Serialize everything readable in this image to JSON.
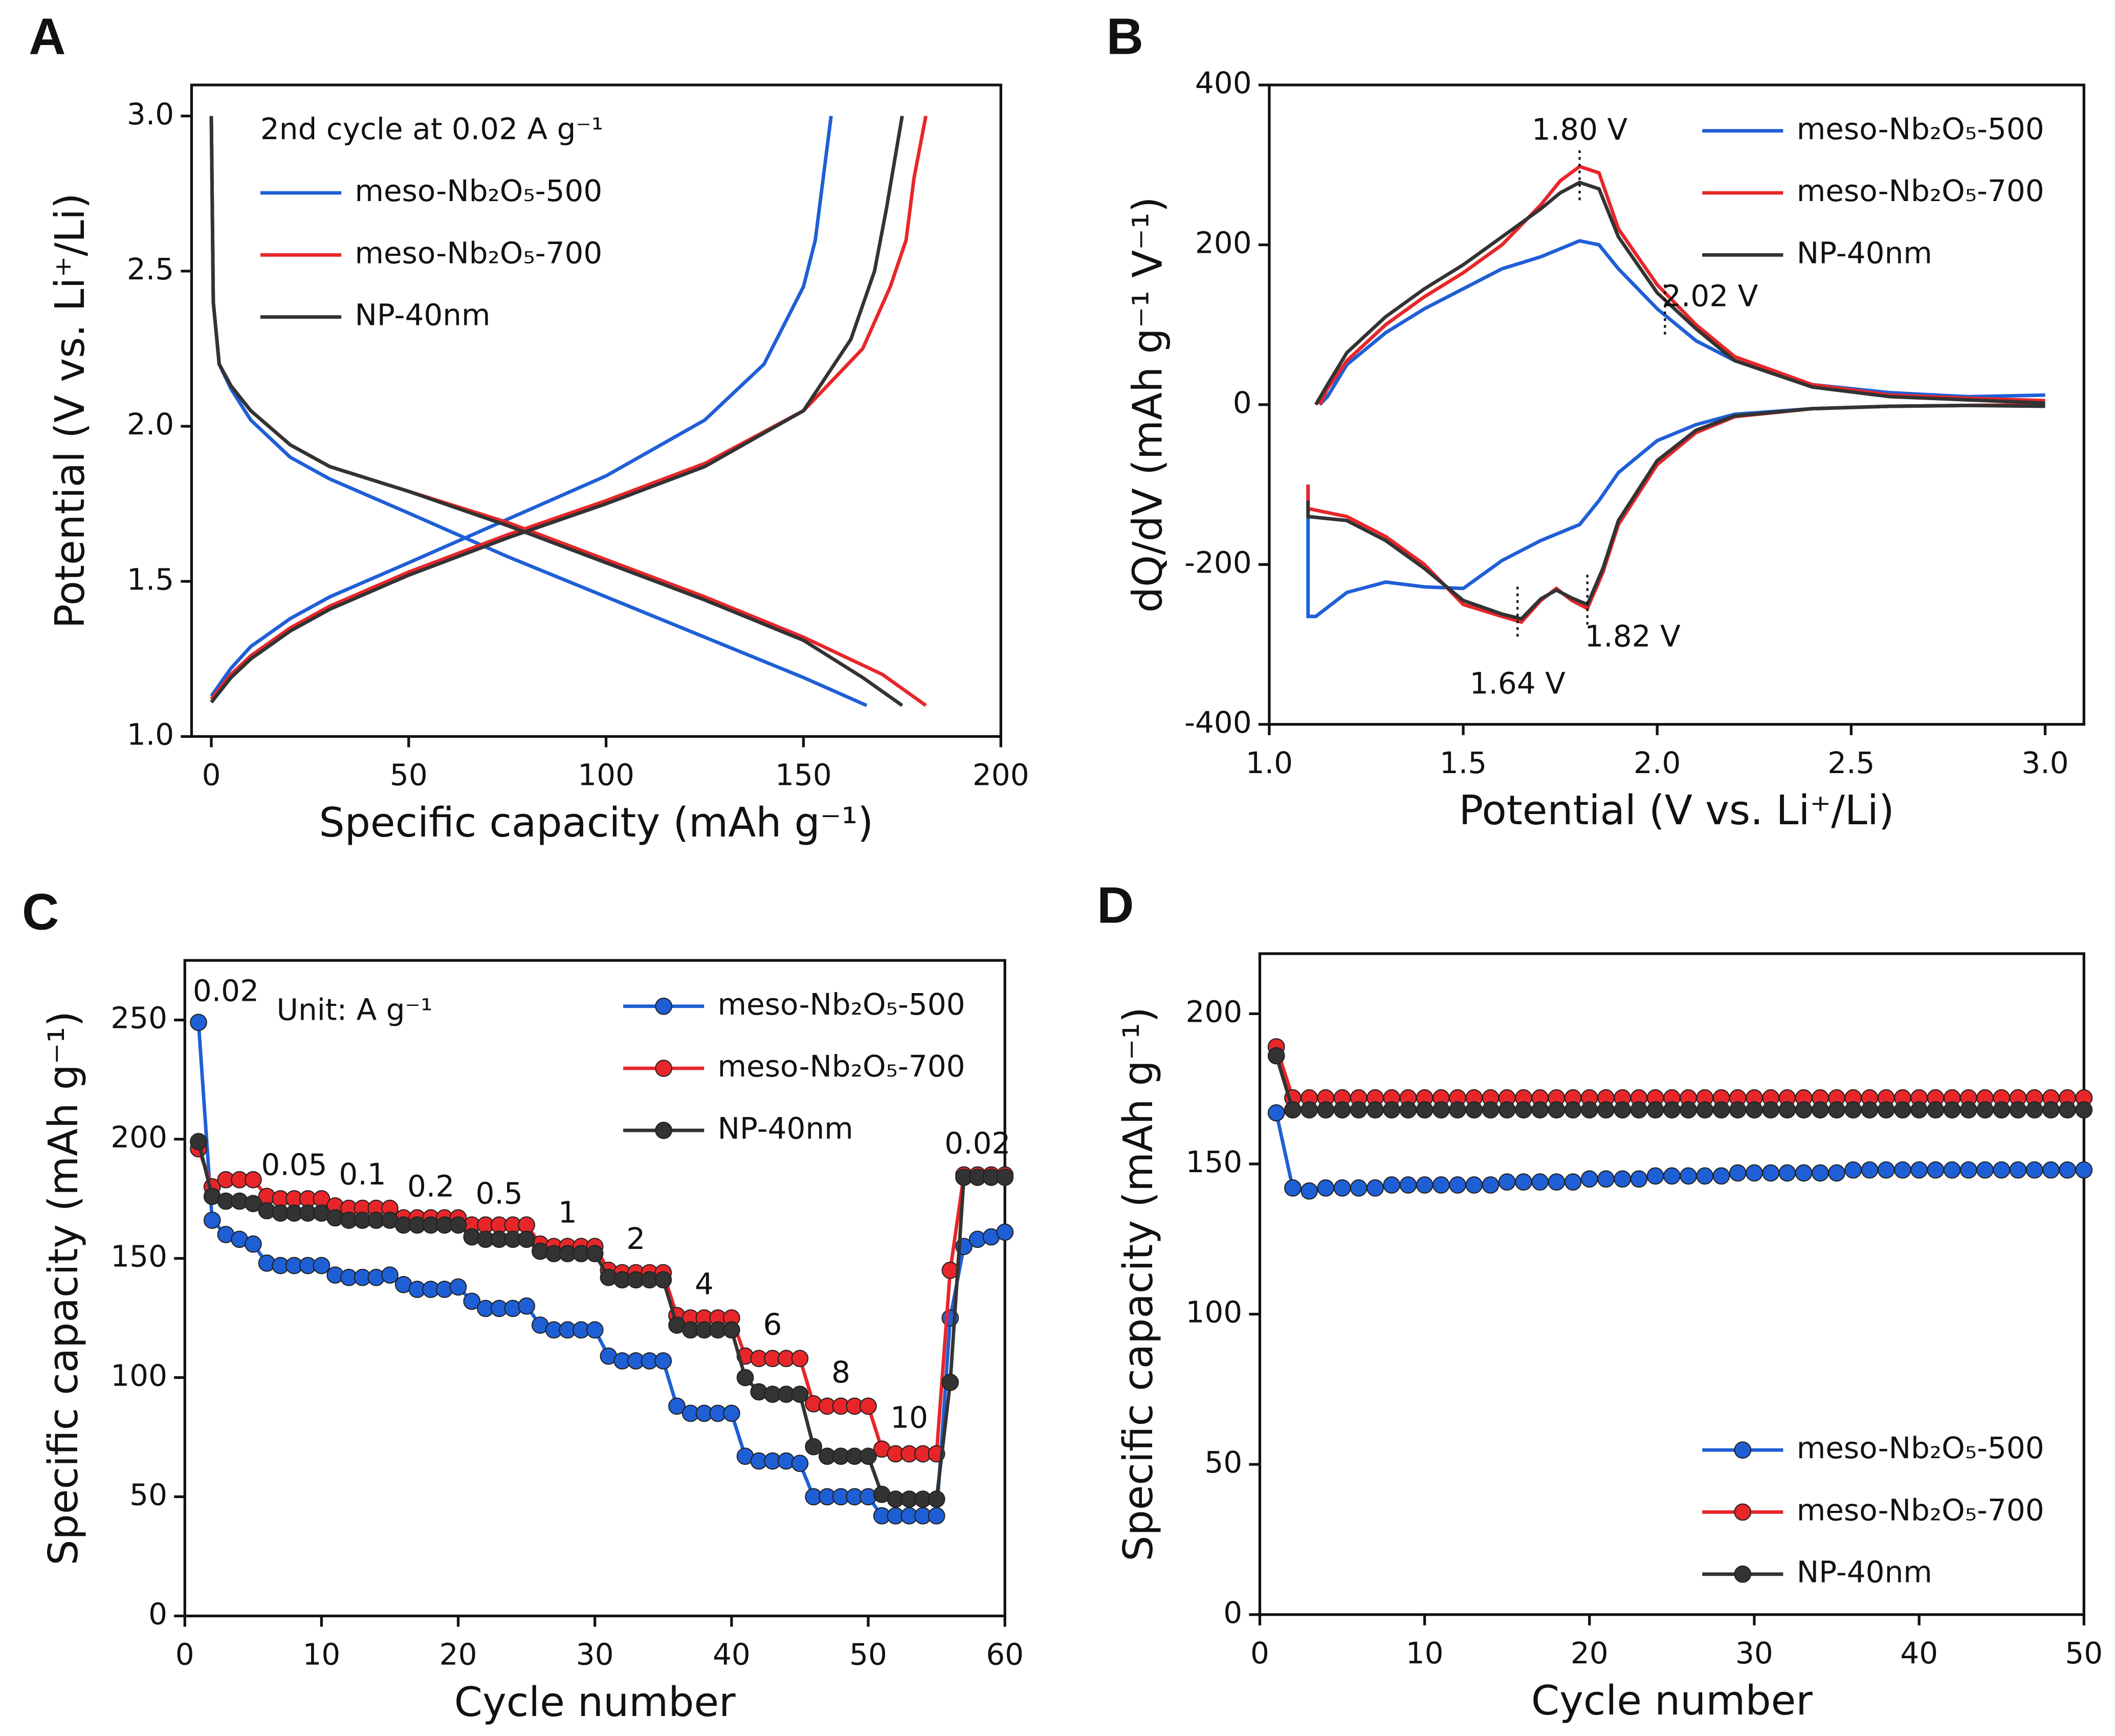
{
  "chart_data": [
    {
      "panel": "A",
      "type": "line",
      "xlabel": "Specific capacity (mAh g⁻¹)",
      "ylabel": "Potential (V vs. Li⁺/Li)",
      "legend_title": "2nd cycle at 0.02 A g⁻¹",
      "legend": "upper left",
      "xlim": [
        -5,
        200
      ],
      "ylim": [
        1.0,
        3.1
      ],
      "xticks": [
        0,
        50,
        100,
        150,
        200
      ],
      "yticks": [
        {
          "value": 1.0,
          "label": "1.0"
        },
        1.5,
        {
          "value": 2.0,
          "label": "2.0"
        },
        2.5,
        {
          "value": 3.0,
          "label": "3.0"
        }
      ],
      "series": [
        {
          "name": "meso-Nb₂O₅-500",
          "color": "#1f5fd6",
          "x": [
            0,
            0.5,
            2,
            5,
            10,
            20,
            30,
            50,
            75,
            100,
            125,
            150,
            166,
            null,
            0,
            5,
            10,
            20,
            30,
            50,
            75,
            100,
            125,
            140,
            150,
            153,
            155,
            157
          ],
          "values": [
            3.0,
            2.4,
            2.2,
            2.12,
            2.02,
            1.9,
            1.83,
            1.72,
            1.58,
            1.45,
            1.32,
            1.19,
            1.1,
            null,
            1.13,
            1.22,
            1.29,
            1.38,
            1.45,
            1.56,
            1.7,
            1.84,
            2.02,
            2.2,
            2.45,
            2.6,
            2.8,
            3.0
          ]
        },
        {
          "name": "meso-Nb₂O₅-700",
          "color": "#e8262a",
          "x": [
            0,
            0.5,
            2,
            5,
            10,
            20,
            30,
            50,
            75,
            100,
            125,
            150,
            170,
            181,
            null,
            0,
            5,
            10,
            20,
            30,
            50,
            75,
            100,
            125,
            150,
            165,
            172,
            176,
            178,
            181
          ],
          "values": [
            3.0,
            2.4,
            2.2,
            2.13,
            2.05,
            1.94,
            1.87,
            1.79,
            1.69,
            1.57,
            1.45,
            1.32,
            1.2,
            1.1,
            null,
            1.12,
            1.2,
            1.26,
            1.35,
            1.42,
            1.53,
            1.65,
            1.76,
            1.88,
            2.05,
            2.25,
            2.45,
            2.6,
            2.8,
            3.0
          ]
        },
        {
          "name": "NP-40nm",
          "color": "#333333",
          "x": [
            0,
            0.5,
            2,
            5,
            10,
            20,
            30,
            50,
            75,
            100,
            125,
            150,
            165,
            175,
            null,
            0,
            5,
            10,
            20,
            30,
            50,
            75,
            100,
            125,
            150,
            162,
            168,
            171,
            173,
            175
          ],
          "values": [
            3.0,
            2.4,
            2.2,
            2.13,
            2.05,
            1.94,
            1.87,
            1.79,
            1.68,
            1.56,
            1.44,
            1.31,
            1.19,
            1.1,
            null,
            1.11,
            1.19,
            1.25,
            1.34,
            1.41,
            1.52,
            1.64,
            1.75,
            1.87,
            2.05,
            2.28,
            2.5,
            2.7,
            2.85,
            3.0
          ]
        }
      ]
    },
    {
      "panel": "B",
      "type": "line",
      "xlabel": "Potential (V vs. Li⁺/Li)",
      "ylabel": "dQ/dV (mAh g⁻¹ V⁻¹)",
      "legend": "upper right",
      "xlim": [
        1.0,
        3.1
      ],
      "ylim": [
        -400,
        400
      ],
      "xticks": [
        {
          "value": 1.0,
          "label": "1.0"
        },
        1.5,
        {
          "value": 2.0,
          "label": "2.0"
        },
        2.5,
        {
          "value": 3.0,
          "label": "3.0"
        }
      ],
      "yticks": [
        -400,
        -200,
        0,
        200,
        400
      ],
      "series": [
        {
          "name": "meso-Nb₂O₅-500",
          "color": "#1f5fd6",
          "x": [
            1.13,
            1.15,
            1.2,
            1.3,
            1.4,
            1.5,
            1.6,
            1.7,
            1.8,
            1.85,
            1.9,
            2.0,
            2.1,
            2.2,
            2.4,
            2.6,
            2.8,
            3.0,
            null,
            1.1,
            1.1,
            1.12,
            1.2,
            1.3,
            1.4,
            1.5,
            1.6,
            1.7,
            1.8,
            1.85,
            1.9,
            2.0,
            2.1,
            2.2,
            2.4,
            2.6,
            2.8,
            3.0
          ],
          "values": [
            0,
            10,
            50,
            90,
            120,
            145,
            170,
            185,
            205,
            200,
            170,
            120,
            80,
            55,
            25,
            15,
            10,
            12,
            null,
            -100,
            -265,
            -265,
            -235,
            -222,
            -228,
            -230,
            -195,
            -170,
            -150,
            -120,
            -85,
            -45,
            -25,
            -12,
            -5,
            -2,
            -1,
            0
          ]
        },
        {
          "name": "meso-Nb₂O₅-700",
          "color": "#e8262a",
          "x": [
            1.13,
            1.15,
            1.2,
            1.3,
            1.4,
            1.5,
            1.6,
            1.7,
            1.75,
            1.8,
            1.85,
            1.9,
            2.0,
            2.1,
            2.2,
            2.4,
            2.6,
            2.8,
            3.0,
            null,
            1.1,
            1.1,
            1.2,
            1.3,
            1.4,
            1.5,
            1.6,
            1.65,
            1.7,
            1.74,
            1.78,
            1.82,
            1.86,
            1.9,
            2.0,
            2.1,
            2.2,
            2.4,
            2.6,
            2.8,
            3.0
          ],
          "values": [
            0,
            20,
            55,
            100,
            135,
            165,
            200,
            250,
            280,
            298,
            290,
            220,
            150,
            100,
            60,
            25,
            12,
            8,
            5,
            null,
            -100,
            -130,
            -140,
            -165,
            -200,
            -250,
            -265,
            -272,
            -245,
            -230,
            -245,
            -255,
            -210,
            -150,
            -75,
            -35,
            -15,
            -5,
            -2,
            -1,
            0
          ]
        },
        {
          "name": "NP-40nm",
          "color": "#333333",
          "x": [
            1.12,
            1.15,
            1.2,
            1.3,
            1.4,
            1.5,
            1.6,
            1.7,
            1.75,
            1.8,
            1.85,
            1.9,
            2.0,
            2.1,
            2.2,
            2.4,
            2.6,
            2.8,
            3.0,
            null,
            1.1,
            1.1,
            1.2,
            1.3,
            1.4,
            1.5,
            1.6,
            1.65,
            1.7,
            1.74,
            1.78,
            1.82,
            1.86,
            1.9,
            2.0,
            2.1,
            2.2,
            2.4,
            2.6,
            2.8,
            3.0
          ],
          "values": [
            0,
            25,
            65,
            110,
            145,
            175,
            210,
            245,
            265,
            278,
            270,
            210,
            140,
            95,
            55,
            22,
            10,
            6,
            2,
            null,
            -120,
            -140,
            -145,
            -170,
            -205,
            -245,
            -262,
            -268,
            -243,
            -232,
            -242,
            -250,
            -205,
            -145,
            -70,
            -32,
            -14,
            -5,
            -2,
            -1,
            -2
          ]
        }
      ],
      "annotations": [
        {
          "text": "1.80 V",
          "x": 1.8,
          "y": 298
        },
        {
          "text": "2.02 V",
          "x": 2.02,
          "y": 130
        },
        {
          "text": "1.64 V",
          "x": 1.64,
          "y": -270
        },
        {
          "text": "1.82 V",
          "x": 1.82,
          "y": -255
        }
      ]
    },
    {
      "panel": "C",
      "type": "line",
      "markers": true,
      "xlabel": "Cycle number",
      "ylabel": "Specific capacity (mAh g⁻¹)",
      "legend": "upper right",
      "note": "Unit:  A g⁻¹",
      "rate_labels": [
        "0.02",
        "0.05",
        "0.1",
        "0.2",
        "0.5",
        "1",
        "2",
        "4",
        "6",
        "8",
        "10",
        "0.02"
      ],
      "xlim": [
        0,
        60
      ],
      "ylim": [
        0,
        275
      ],
      "xticks": [
        0,
        10,
        20,
        30,
        40,
        50,
        60
      ],
      "yticks": [
        0,
        50,
        100,
        150,
        200,
        250
      ],
      "x": [
        1,
        2,
        3,
        4,
        5,
        6,
        7,
        8,
        9,
        10,
        11,
        12,
        13,
        14,
        15,
        16,
        17,
        18,
        19,
        20,
        21,
        22,
        23,
        24,
        25,
        26,
        27,
        28,
        29,
        30,
        31,
        32,
        33,
        34,
        35,
        36,
        37,
        38,
        39,
        40,
        41,
        42,
        43,
        44,
        45,
        46,
        47,
        48,
        49,
        50,
        51,
        52,
        53,
        54,
        55,
        56,
        57,
        58,
        59,
        60
      ],
      "series": [
        {
          "name": "meso-Nb₂O₅-500",
          "color": "#1f5fd6",
          "values": [
            249,
            166,
            160,
            158,
            156,
            148,
            147,
            147,
            147,
            147,
            143,
            142,
            142,
            142,
            143,
            139,
            137,
            137,
            137,
            138,
            132,
            129,
            129,
            129,
            130,
            122,
            120,
            120,
            120,
            120,
            109,
            107,
            107,
            107,
            107,
            88,
            85,
            85,
            85,
            85,
            67,
            65,
            65,
            65,
            64,
            50,
            50,
            50,
            50,
            50,
            42,
            42,
            42,
            42,
            42,
            125,
            155,
            158,
            159,
            161
          ]
        },
        {
          "name": "meso-Nb₂O₅-700",
          "color": "#e8262a",
          "values": [
            196,
            180,
            183,
            183,
            183,
            176,
            175,
            175,
            175,
            175,
            172,
            171,
            171,
            171,
            171,
            167,
            167,
            167,
            167,
            167,
            164,
            164,
            164,
            164,
            164,
            156,
            155,
            155,
            155,
            155,
            145,
            144,
            144,
            144,
            144,
            126,
            125,
            125,
            125,
            125,
            109,
            108,
            108,
            108,
            108,
            89,
            88,
            88,
            88,
            88,
            70,
            68,
            68,
            68,
            68,
            145,
            185,
            185,
            185,
            185
          ]
        },
        {
          "name": "NP-40nm",
          "color": "#333333",
          "values": [
            199,
            176,
            174,
            174,
            173,
            170,
            169,
            169,
            169,
            169,
            167,
            166,
            166,
            166,
            166,
            164,
            164,
            164,
            164,
            164,
            159,
            158,
            158,
            158,
            158,
            153,
            152,
            152,
            152,
            152,
            142,
            141,
            141,
            141,
            141,
            122,
            120,
            120,
            120,
            120,
            100,
            94,
            93,
            93,
            93,
            71,
            67,
            67,
            67,
            67,
            51,
            49,
            49,
            49,
            49,
            98,
            184,
            184,
            184,
            184
          ]
        }
      ]
    },
    {
      "panel": "D",
      "type": "line",
      "markers": true,
      "xlabel": "Cycle number",
      "ylabel": "Specific capacity (mAh g⁻¹)",
      "legend": "lower right",
      "xlim": [
        0,
        50
      ],
      "ylim": [
        0,
        220
      ],
      "xticks": [
        0,
        10,
        20,
        30,
        40,
        50
      ],
      "yticks": [
        0,
        50,
        100,
        150,
        200
      ],
      "x": [
        1,
        2,
        3,
        4,
        5,
        6,
        7,
        8,
        9,
        10,
        11,
        12,
        13,
        14,
        15,
        16,
        17,
        18,
        19,
        20,
        21,
        22,
        23,
        24,
        25,
        26,
        27,
        28,
        29,
        30,
        31,
        32,
        33,
        34,
        35,
        36,
        37,
        38,
        39,
        40,
        41,
        42,
        43,
        44,
        45,
        46,
        47,
        48,
        49,
        50
      ],
      "series": [
        {
          "name": "meso-Nb₂O₅-500",
          "color": "#1f5fd6",
          "values": [
            167,
            142,
            141,
            142,
            142,
            142,
            142,
            143,
            143,
            143,
            143,
            143,
            143,
            143,
            144,
            144,
            144,
            144,
            144,
            145,
            145,
            145,
            145,
            146,
            146,
            146,
            146,
            146,
            147,
            147,
            147,
            147,
            147,
            147,
            147,
            148,
            148,
            148,
            148,
            148,
            148,
            148,
            148,
            148,
            148,
            148,
            148,
            148,
            148,
            148
          ]
        },
        {
          "name": "meso-Nb₂O₅-700",
          "color": "#e8262a",
          "values": [
            189,
            172,
            172,
            172,
            172,
            172,
            172,
            172,
            172,
            172,
            172,
            172,
            172,
            172,
            172,
            172,
            172,
            172,
            172,
            172,
            172,
            172,
            172,
            172,
            172,
            172,
            172,
            172,
            172,
            172,
            172,
            172,
            172,
            172,
            172,
            172,
            172,
            172,
            172,
            172,
            172,
            172,
            172,
            172,
            172,
            172,
            172,
            172,
            172,
            172
          ]
        },
        {
          "name": "NP-40nm",
          "color": "#333333",
          "values": [
            186,
            168,
            168,
            168,
            168,
            168,
            168,
            168,
            168,
            168,
            168,
            168,
            168,
            168,
            168,
            168,
            168,
            168,
            168,
            168,
            168,
            168,
            168,
            168,
            168,
            168,
            168,
            168,
            168,
            168,
            168,
            168,
            168,
            168,
            168,
            168,
            168,
            168,
            168,
            168,
            168,
            168,
            168,
            168,
            168,
            168,
            168,
            168,
            168,
            168
          ]
        }
      ]
    }
  ]
}
